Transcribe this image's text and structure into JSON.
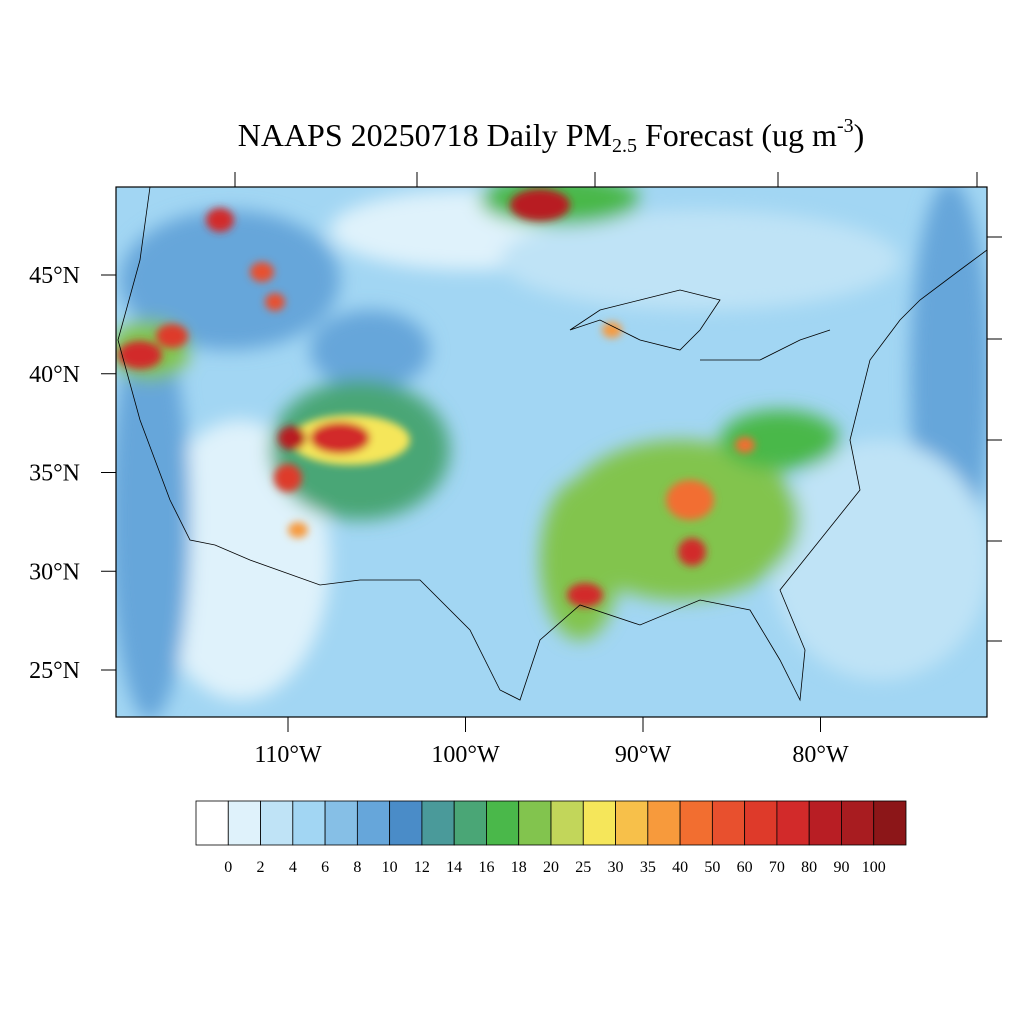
{
  "header": {
    "title": {
      "main": "NAAPS 20250718 Daily PM",
      "sub": "2.5",
      "middle": " Forecast (ug m",
      "sup": "-3",
      "end": ")"
    }
  },
  "map": {
    "lat_labels": [
      "45°N",
      "40°N",
      "35°N",
      "30°N",
      "25°N"
    ],
    "lon_labels": [
      "110°W",
      "100°W",
      "90°W",
      "80°W"
    ]
  },
  "colorbar": {
    "colors": [
      "#ffffff",
      "#dff2fb",
      "#bfe3f6",
      "#a2d6f3",
      "#86bfe6",
      "#66a6da",
      "#4a8cc8",
      "#4a9a9a",
      "#4aa676",
      "#4ab84a",
      "#82c44e",
      "#c2d65a",
      "#f5e65a",
      "#f7c04a",
      "#f79a3c",
      "#f26e30",
      "#e8502e",
      "#de3a2a",
      "#d22a2a",
      "#b81e24",
      "#a81c20",
      "#8c1618"
    ],
    "labels": [
      0,
      2,
      4,
      6,
      8,
      10,
      12,
      14,
      16,
      18,
      20,
      25,
      30,
      35,
      40,
      50,
      60,
      70,
      80,
      90,
      100
    ]
  }
}
